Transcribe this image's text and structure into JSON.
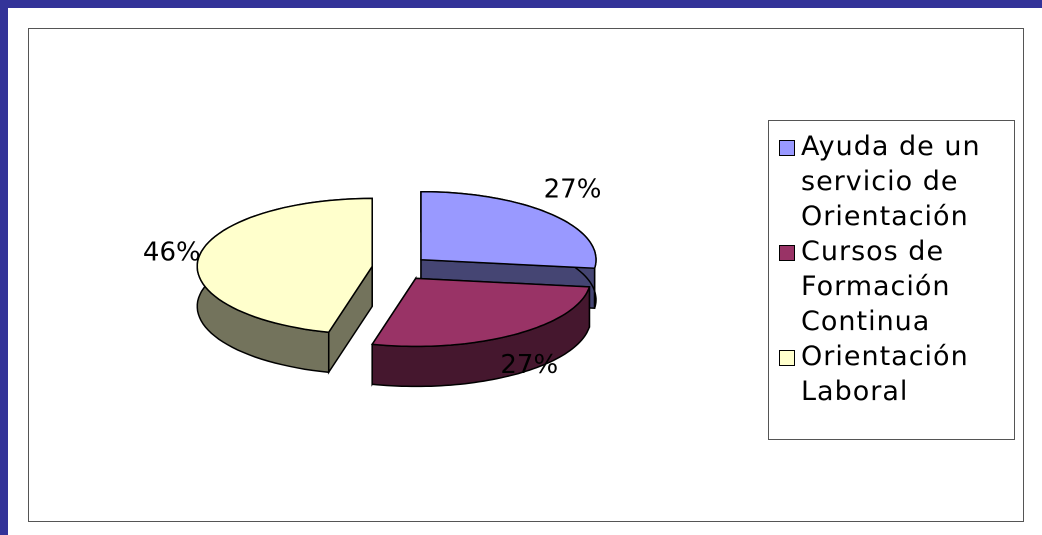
{
  "chart_data": {
    "type": "pie",
    "categories": [
      "Ayuda de un servicio de Orientación",
      "Cursos de Formación Continua",
      "Orientación Laboral"
    ],
    "values": [
      27,
      27,
      46
    ],
    "value_labels": [
      "27%",
      "27%",
      "46%"
    ],
    "colors": [
      "#9999ff",
      "#993366",
      "#ffffcc"
    ],
    "legend": "right"
  }
}
